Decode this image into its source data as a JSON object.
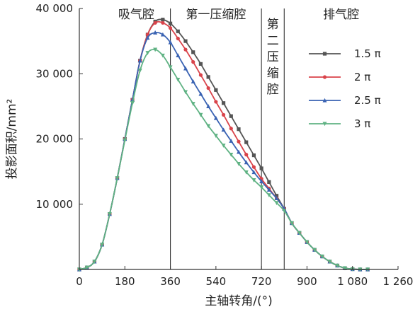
{
  "chart_data": {
    "type": "line",
    "title": "",
    "xlabel": "主轴转角/(°)",
    "ylabel": "投影面积/mm²",
    "xlim": [
      0,
      1260
    ],
    "ylim": [
      0,
      40000
    ],
    "x_ticks": [
      0,
      180,
      360,
      540,
      720,
      900,
      1080,
      1260
    ],
    "x_tick_labels": [
      "0",
      "180",
      "360",
      "540",
      "720",
      "900",
      "1 080",
      "1 260"
    ],
    "y_ticks": [
      10000,
      20000,
      30000,
      40000
    ],
    "y_tick_labels": [
      "10 000",
      "20 000",
      "30 000",
      "40 000"
    ],
    "grid": false,
    "legend_position": "right",
    "regions": [
      {
        "label": "吸气腔",
        "x_start": 0,
        "x_end": 360,
        "vertical": false
      },
      {
        "label": "第一压缩腔",
        "x_start": 360,
        "x_end": 720,
        "vertical": false
      },
      {
        "label": "第二压缩腔",
        "x_start": 720,
        "x_end": 810,
        "vertical": true
      },
      {
        "label": "排气腔",
        "x_start": 810,
        "x_end": 1260,
        "vertical": false
      }
    ],
    "region_boundaries": [
      360,
      720,
      810
    ],
    "x": [
      0,
      30,
      60,
      90,
      120,
      150,
      180,
      210,
      240,
      270,
      300,
      330,
      360,
      390,
      420,
      450,
      480,
      510,
      540,
      570,
      600,
      630,
      660,
      690,
      720,
      750,
      780,
      810,
      840,
      870,
      900,
      930,
      960,
      990,
      1020,
      1050,
      1080,
      1110,
      1140
    ],
    "series": [
      {
        "name": "1.5 π",
        "color": "#555555",
        "marker": "square",
        "values": [
          0,
          300,
          1200,
          3800,
          8500,
          14000,
          20000,
          26000,
          32000,
          36000,
          38000,
          38300,
          37700,
          36500,
          35000,
          33300,
          31500,
          29500,
          27500,
          25500,
          23500,
          21500,
          19500,
          17500,
          15500,
          13400,
          11300,
          9300,
          7100,
          5600,
          4200,
          3000,
          2000,
          1200,
          600,
          200,
          50,
          0,
          0
        ]
      },
      {
        "name": "2 π",
        "color": "#d9434a",
        "marker": "circle",
        "values": [
          0,
          300,
          1200,
          3800,
          8500,
          14000,
          20000,
          26000,
          32000,
          36000,
          37800,
          37800,
          37000,
          35400,
          33700,
          31800,
          29800,
          27800,
          25700,
          23700,
          21600,
          19600,
          17600,
          15700,
          13900,
          12400,
          10900,
          9300,
          7100,
          5600,
          4200,
          3000,
          2000,
          1200,
          600,
          200,
          50,
          0,
          0
        ]
      },
      {
        "name": "2.5 π",
        "color": "#3a63b3",
        "marker": "triangle-up",
        "values": [
          0,
          300,
          1200,
          3800,
          8500,
          14000,
          20000,
          26000,
          32000,
          35500,
          36300,
          36000,
          34800,
          32800,
          30800,
          28800,
          26900,
          25000,
          23200,
          21400,
          19700,
          18000,
          16400,
          14900,
          13500,
          12200,
          10900,
          9300,
          7100,
          5600,
          4200,
          3000,
          2000,
          1200,
          600,
          200,
          50,
          0,
          0
        ]
      },
      {
        "name": "3 π",
        "color": "#5fb283",
        "marker": "triangle-down",
        "values": [
          0,
          300,
          1200,
          3800,
          8500,
          14000,
          19800,
          25500,
          30500,
          33200,
          33700,
          32800,
          31000,
          29100,
          27200,
          25400,
          23700,
          22000,
          20500,
          19000,
          17600,
          16200,
          14900,
          13700,
          12600,
          11400,
          10200,
          9000,
          7100,
          5600,
          4200,
          3000,
          2000,
          1200,
          600,
          200,
          50,
          0,
          0
        ]
      }
    ]
  }
}
